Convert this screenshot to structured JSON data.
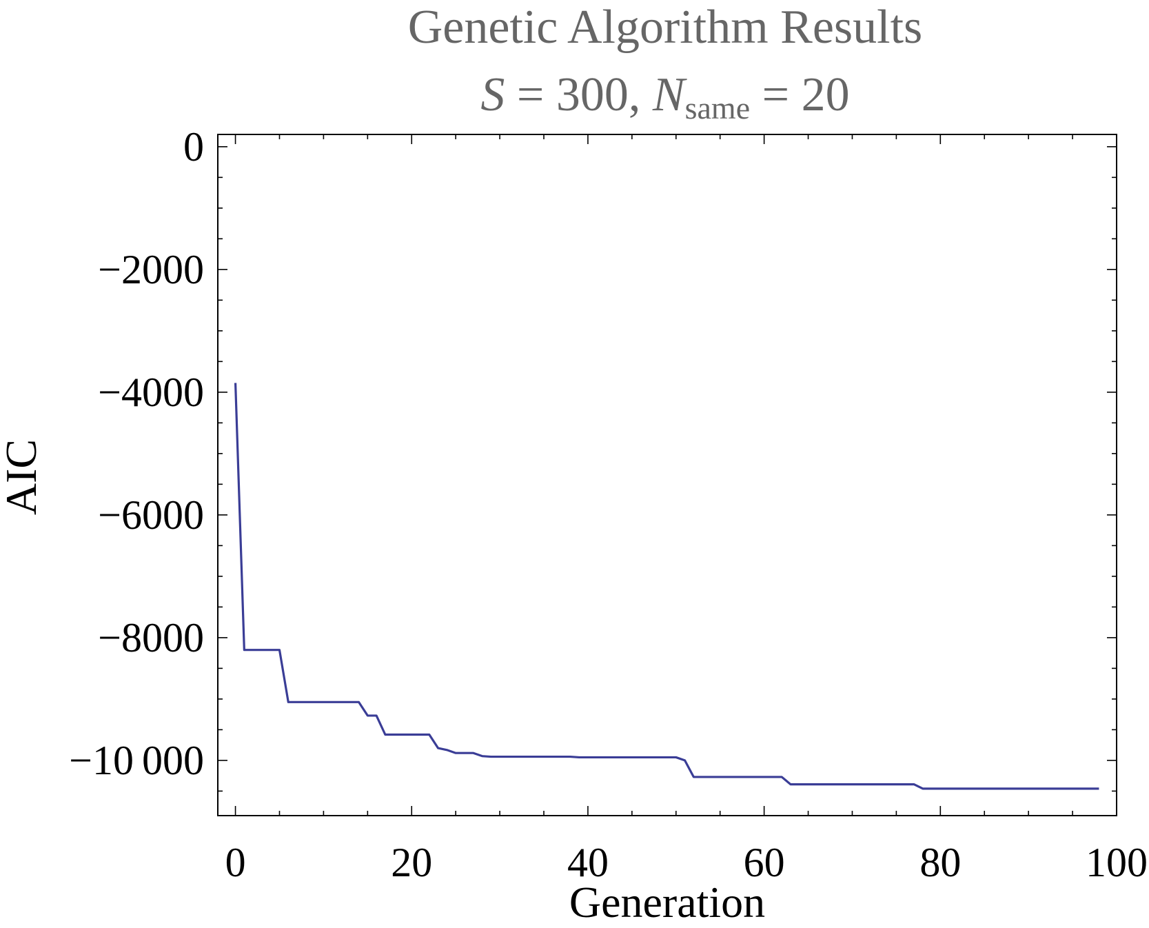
{
  "chart_data": {
    "type": "line",
    "title": "Genetic Algorithm Results",
    "subtitle": {
      "s_symbol": "S",
      "s_text": " = 300, ",
      "n_symbol": "N",
      "n_subscript": "same",
      "n_text": " = 20"
    },
    "xlabel": "Generation",
    "ylabel": "AIC",
    "xlim": [
      -2,
      100
    ],
    "ylim": [
      -10900,
      200
    ],
    "x_ticks": [
      0,
      20,
      40,
      60,
      80,
      100
    ],
    "x_tick_labels": [
      "0",
      "20",
      "40",
      "60",
      "80",
      "100"
    ],
    "y_ticks": [
      0,
      -2000,
      -4000,
      -6000,
      -8000,
      -10000
    ],
    "y_tick_labels": [
      "0",
      "−2000",
      "−4000",
      "−6000",
      "−8000",
      "−10 000"
    ],
    "grid": false,
    "colors": {
      "line": "#3a3d96",
      "title": "#666666"
    },
    "series": [
      {
        "x": [
          0,
          1,
          2,
          3,
          4,
          5,
          6,
          7,
          8,
          9,
          10,
          11,
          12,
          13,
          14,
          15,
          16,
          17,
          18,
          19,
          20,
          21,
          22,
          23,
          24,
          25,
          26,
          27,
          28,
          29,
          30,
          31,
          32,
          33,
          34,
          35,
          36,
          37,
          38,
          39,
          40,
          41,
          42,
          43,
          44,
          45,
          46,
          47,
          48,
          49,
          50,
          51,
          52,
          53,
          54,
          55,
          56,
          57,
          58,
          59,
          60,
          61,
          62,
          63,
          64,
          65,
          66,
          67,
          68,
          69,
          70,
          71,
          72,
          73,
          74,
          75,
          76,
          77,
          78,
          79,
          80,
          81,
          82,
          83,
          84,
          85,
          86,
          87,
          88,
          89,
          90,
          91,
          92,
          93,
          94,
          95,
          96,
          97,
          98
        ],
        "y": [
          -3850,
          -8200,
          -8200,
          -8200,
          -8200,
          -8200,
          -9050,
          -9050,
          -9050,
          -9050,
          -9050,
          -9050,
          -9050,
          -9050,
          -9050,
          -9270,
          -9270,
          -9580,
          -9580,
          -9580,
          -9580,
          -9580,
          -9580,
          -9800,
          -9830,
          -9880,
          -9880,
          -9880,
          -9930,
          -9940,
          -9940,
          -9940,
          -9940,
          -9940,
          -9940,
          -9940,
          -9940,
          -9940,
          -9940,
          -9950,
          -9950,
          -9950,
          -9950,
          -9950,
          -9950,
          -9950,
          -9950,
          -9950,
          -9950,
          -9950,
          -9950,
          -10000,
          -10270,
          -10270,
          -10270,
          -10270,
          -10270,
          -10270,
          -10270,
          -10270,
          -10270,
          -10270,
          -10270,
          -10390,
          -10390,
          -10390,
          -10390,
          -10390,
          -10390,
          -10390,
          -10390,
          -10390,
          -10390,
          -10390,
          -10390,
          -10390,
          -10390,
          -10390,
          -10460,
          -10460,
          -10460,
          -10460,
          -10460,
          -10460,
          -10460,
          -10460,
          -10460,
          -10460,
          -10460,
          -10460,
          -10460,
          -10460,
          -10460,
          -10460,
          -10460,
          -10460,
          -10460,
          -10460,
          -10460
        ]
      }
    ]
  }
}
